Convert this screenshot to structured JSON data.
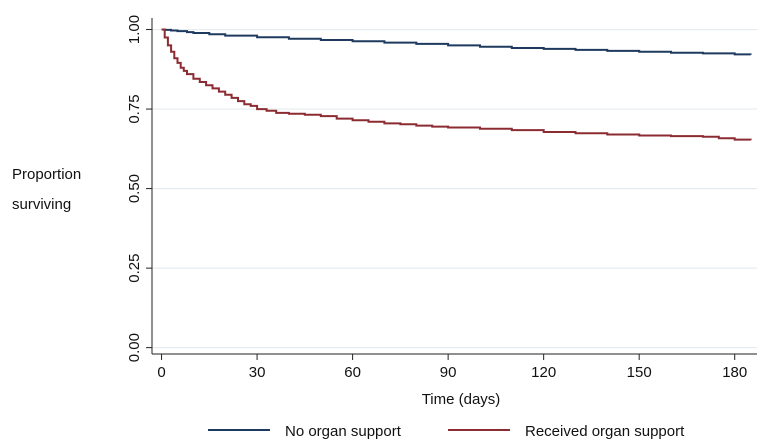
{
  "chart_data": {
    "type": "line",
    "title": "",
    "xlabel": "Time (days)",
    "ylabel_line1": "Proportion",
    "ylabel_line2": "surviving",
    "xlim": [
      -3,
      187
    ],
    "ylim": [
      -0.02,
      1.03
    ],
    "x_ticks": [
      0,
      30,
      60,
      90,
      120,
      150,
      180
    ],
    "x_tick_labels": [
      "0",
      "30",
      "60",
      "90",
      "120",
      "150",
      "180"
    ],
    "y_ticks": [
      0,
      0.25,
      0.5,
      0.75,
      1.0
    ],
    "y_tick_labels": [
      "0.00",
      "0.25",
      "0.50",
      "0.75",
      "1.00"
    ],
    "grid": "horizontal",
    "legend_position": "bottom",
    "series": [
      {
        "name": "No organ support",
        "color": "#1f3a5f",
        "x": [
          0,
          1,
          3,
          5,
          8,
          10,
          15,
          20,
          30,
          40,
          50,
          60,
          70,
          80,
          90,
          100,
          110,
          120,
          130,
          140,
          150,
          160,
          170,
          180,
          185
        ],
        "y": [
          1.0,
          0.999,
          0.997,
          0.995,
          0.992,
          0.989,
          0.985,
          0.981,
          0.976,
          0.971,
          0.967,
          0.963,
          0.959,
          0.955,
          0.95,
          0.946,
          0.942,
          0.939,
          0.936,
          0.933,
          0.93,
          0.927,
          0.925,
          0.922,
          0.921
        ]
      },
      {
        "name": "Received organ support",
        "color": "#8b2b32",
        "x": [
          0,
          1,
          2,
          3,
          4,
          5,
          6,
          7,
          8,
          10,
          12,
          14,
          16,
          18,
          20,
          22,
          24,
          26,
          28,
          30,
          33,
          36,
          40,
          45,
          50,
          55,
          60,
          65,
          70,
          75,
          80,
          85,
          90,
          100,
          110,
          120,
          130,
          140,
          150,
          160,
          170,
          175,
          180,
          185
        ],
        "y": [
          1.0,
          0.975,
          0.95,
          0.93,
          0.91,
          0.895,
          0.88,
          0.87,
          0.86,
          0.845,
          0.835,
          0.825,
          0.815,
          0.805,
          0.795,
          0.785,
          0.775,
          0.765,
          0.76,
          0.75,
          0.745,
          0.738,
          0.735,
          0.732,
          0.728,
          0.72,
          0.715,
          0.71,
          0.705,
          0.702,
          0.698,
          0.695,
          0.692,
          0.688,
          0.684,
          0.678,
          0.674,
          0.67,
          0.667,
          0.665,
          0.663,
          0.658,
          0.654,
          0.652
        ]
      }
    ]
  }
}
